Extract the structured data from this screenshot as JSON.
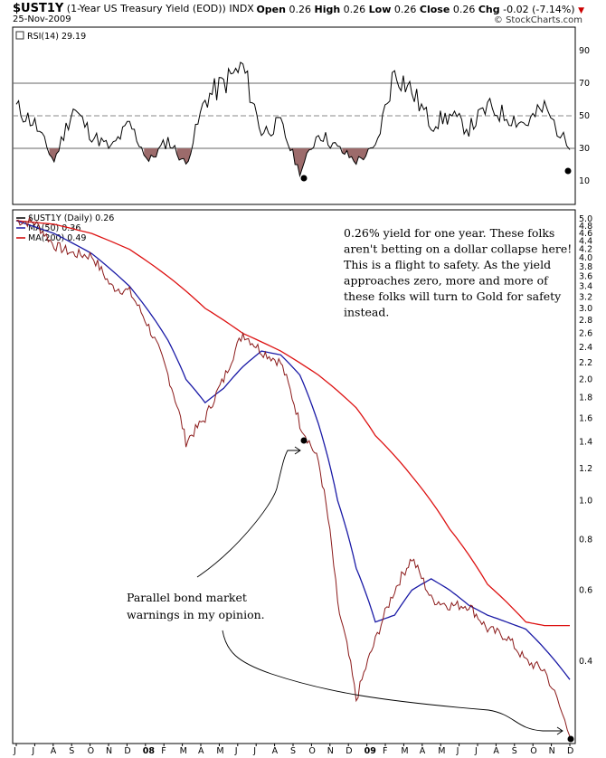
{
  "header": {
    "symbol": "$UST1Y",
    "description": "(1-Year US Treasury Yield (EOD))",
    "exchange": "INDX",
    "date": "25-Nov-2009",
    "open_label": "Open",
    "open": "0.26",
    "high_label": "High",
    "high": "0.26",
    "low_label": "Low",
    "low": "0.26",
    "close_label": "Close",
    "close": "0.26",
    "chg_label": "Chg",
    "chg": "-0.02 (-7.14%)",
    "brand": "© StockCharts.com"
  },
  "rsi_panel": {
    "label": "RSI(14) 29.19",
    "ticks": [
      "90",
      "70",
      "50",
      "30",
      "10"
    ]
  },
  "price_panel": {
    "legend": [
      {
        "text": "$UST1Y (Daily) 0.26",
        "color": "#000000"
      },
      {
        "text": "MA(50) 0.36",
        "color": "#1a1aa6"
      },
      {
        "text": "MA(200) 0.49",
        "color": "#cc0000"
      }
    ],
    "y_ticks": [
      "5.0",
      "4.8",
      "4.6",
      "4.4",
      "4.2",
      "4.0",
      "3.8",
      "3.6",
      "3.4",
      "3.2",
      "3.0",
      "2.8",
      "2.6",
      "2.4",
      "2.2",
      "2.0",
      "1.8",
      "1.6",
      "1.4",
      "1.2",
      "1.0",
      "0.8",
      "0.6",
      "0.4"
    ]
  },
  "x_axis": {
    "labels": [
      "J",
      "J",
      "A",
      "S",
      "O",
      "N",
      "D",
      "08",
      "F",
      "M",
      "A",
      "M",
      "J",
      "J",
      "A",
      "S",
      "O",
      "N",
      "D",
      "09",
      "F",
      "M",
      "A",
      "M",
      "J",
      "J",
      "A",
      "S",
      "O",
      "N",
      "D"
    ]
  },
  "annotations": {
    "note_top": [
      "0.26% yield for one year. These folks",
      "aren't betting on a dollar collapse here!",
      "This is a flight to safety. As the yield",
      "approaches zero, more and more of",
      "these folks will turn to Gold for safety",
      "instead."
    ],
    "note_bottom": [
      "Parallel bond market",
      "warnings in my opinion."
    ]
  },
  "chart_data": {
    "type": "line",
    "x_range": [
      "2007-06",
      "2009-11-25"
    ],
    "y_scale": "log",
    "y_range": [
      0.26,
      5.0
    ],
    "series": [
      {
        "name": "$UST1Y (Daily) 0.26",
        "color": "#8b1a1a",
        "points": [
          [
            "2007-06",
            4.95
          ],
          [
            "2007-07",
            4.9
          ],
          [
            "2007-08",
            4.3
          ],
          [
            "2007-09",
            4.1
          ],
          [
            "2007-10",
            4.05
          ],
          [
            "2007-11",
            3.4
          ],
          [
            "2007-12",
            3.3
          ],
          [
            "2008-01",
            2.7
          ],
          [
            "2008-02",
            2.05
          ],
          [
            "2008-03",
            1.4
          ],
          [
            "2008-04",
            1.6
          ],
          [
            "2008-05",
            2.0
          ],
          [
            "2008-06",
            2.6
          ],
          [
            "2008-07",
            2.35
          ],
          [
            "2008-08",
            2.2
          ],
          [
            "2008-09",
            1.55
          ],
          [
            "2008-10",
            1.25
          ],
          [
            "2008-11",
            0.55
          ],
          [
            "2008-12",
            0.32
          ],
          [
            "2009-01",
            0.45
          ],
          [
            "2009-02",
            0.6
          ],
          [
            "2009-03",
            0.72
          ],
          [
            "2009-04",
            0.57
          ],
          [
            "2009-05",
            0.55
          ],
          [
            "2009-06",
            0.55
          ],
          [
            "2009-07",
            0.48
          ],
          [
            "2009-08",
            0.46
          ],
          [
            "2009-09",
            0.4
          ],
          [
            "2009-10",
            0.38
          ],
          [
            "2009-11-25",
            0.26
          ]
        ]
      },
      {
        "name": "MA(50) 0.36",
        "color": "#1a1aa6",
        "points": [
          [
            "2007-06",
            4.95
          ],
          [
            "2007-08",
            4.6
          ],
          [
            "2007-10",
            4.1
          ],
          [
            "2007-12",
            3.4
          ],
          [
            "2008-02",
            2.5
          ],
          [
            "2008-03",
            2.0
          ],
          [
            "2008-04",
            1.75
          ],
          [
            "2008-05",
            1.9
          ],
          [
            "2008-06",
            2.15
          ],
          [
            "2008-07",
            2.35
          ],
          [
            "2008-08",
            2.3
          ],
          [
            "2008-09",
            2.05
          ],
          [
            "2008-10",
            1.55
          ],
          [
            "2008-11",
            1.0
          ],
          [
            "2008-12",
            0.68
          ],
          [
            "2009-01",
            0.5
          ],
          [
            "2009-02",
            0.52
          ],
          [
            "2009-03",
            0.6
          ],
          [
            "2009-04",
            0.64
          ],
          [
            "2009-05",
            0.6
          ],
          [
            "2009-06",
            0.55
          ],
          [
            "2009-07",
            0.52
          ],
          [
            "2009-08",
            0.5
          ],
          [
            "2009-09",
            0.48
          ],
          [
            "2009-10",
            0.43
          ],
          [
            "2009-11-25",
            0.36
          ]
        ]
      },
      {
        "name": "MA(200) 0.49",
        "color": "#cc0000",
        "points": [
          [
            "2007-06",
            4.95
          ],
          [
            "2007-08",
            4.85
          ],
          [
            "2007-10",
            4.6
          ],
          [
            "2007-12",
            4.2
          ],
          [
            "2008-02",
            3.6
          ],
          [
            "2008-04",
            3.0
          ],
          [
            "2008-06",
            2.6
          ],
          [
            "2008-08",
            2.35
          ],
          [
            "2008-10",
            2.05
          ],
          [
            "2008-12",
            1.7
          ],
          [
            "2009-01",
            1.45
          ],
          [
            "2009-03",
            1.15
          ],
          [
            "2009-05",
            0.85
          ],
          [
            "2009-07",
            0.62
          ],
          [
            "2009-09",
            0.5
          ],
          [
            "2009-10",
            0.49
          ],
          [
            "2009-11-25",
            0.49
          ]
        ]
      }
    ],
    "rsi": {
      "name": "RSI(14) 29.19",
      "y_range": [
        0,
        100
      ],
      "levels": [
        70,
        50,
        30
      ],
      "points": [
        [
          "2007-06",
          55
        ],
        [
          "2007-07",
          45
        ],
        [
          "2007-08",
          22
        ],
        [
          "2007-09",
          55
        ],
        [
          "2007-10",
          38
        ],
        [
          "2007-11",
          30
        ],
        [
          "2007-12",
          45
        ],
        [
          "2008-01",
          22
        ],
        [
          "2008-02",
          35
        ],
        [
          "2008-03",
          20
        ],
        [
          "2008-04",
          60
        ],
        [
          "2008-05",
          70
        ],
        [
          "2008-06",
          80
        ],
        [
          "2008-07",
          40
        ],
        [
          "2008-08",
          45
        ],
        [
          "2008-09",
          15
        ],
        [
          "2008-10",
          40
        ],
        [
          "2008-11",
          30
        ],
        [
          "2008-12",
          22
        ],
        [
          "2009-01",
          30
        ],
        [
          "2009-02",
          78
        ],
        [
          "2009-03",
          65
        ],
        [
          "2009-04",
          45
        ],
        [
          "2009-05",
          50
        ],
        [
          "2009-06",
          42
        ],
        [
          "2009-07",
          55
        ],
        [
          "2009-08",
          50
        ],
        [
          "2009-09",
          45
        ],
        [
          "2009-10",
          55
        ],
        [
          "2009-11-25",
          29.19
        ]
      ]
    }
  }
}
